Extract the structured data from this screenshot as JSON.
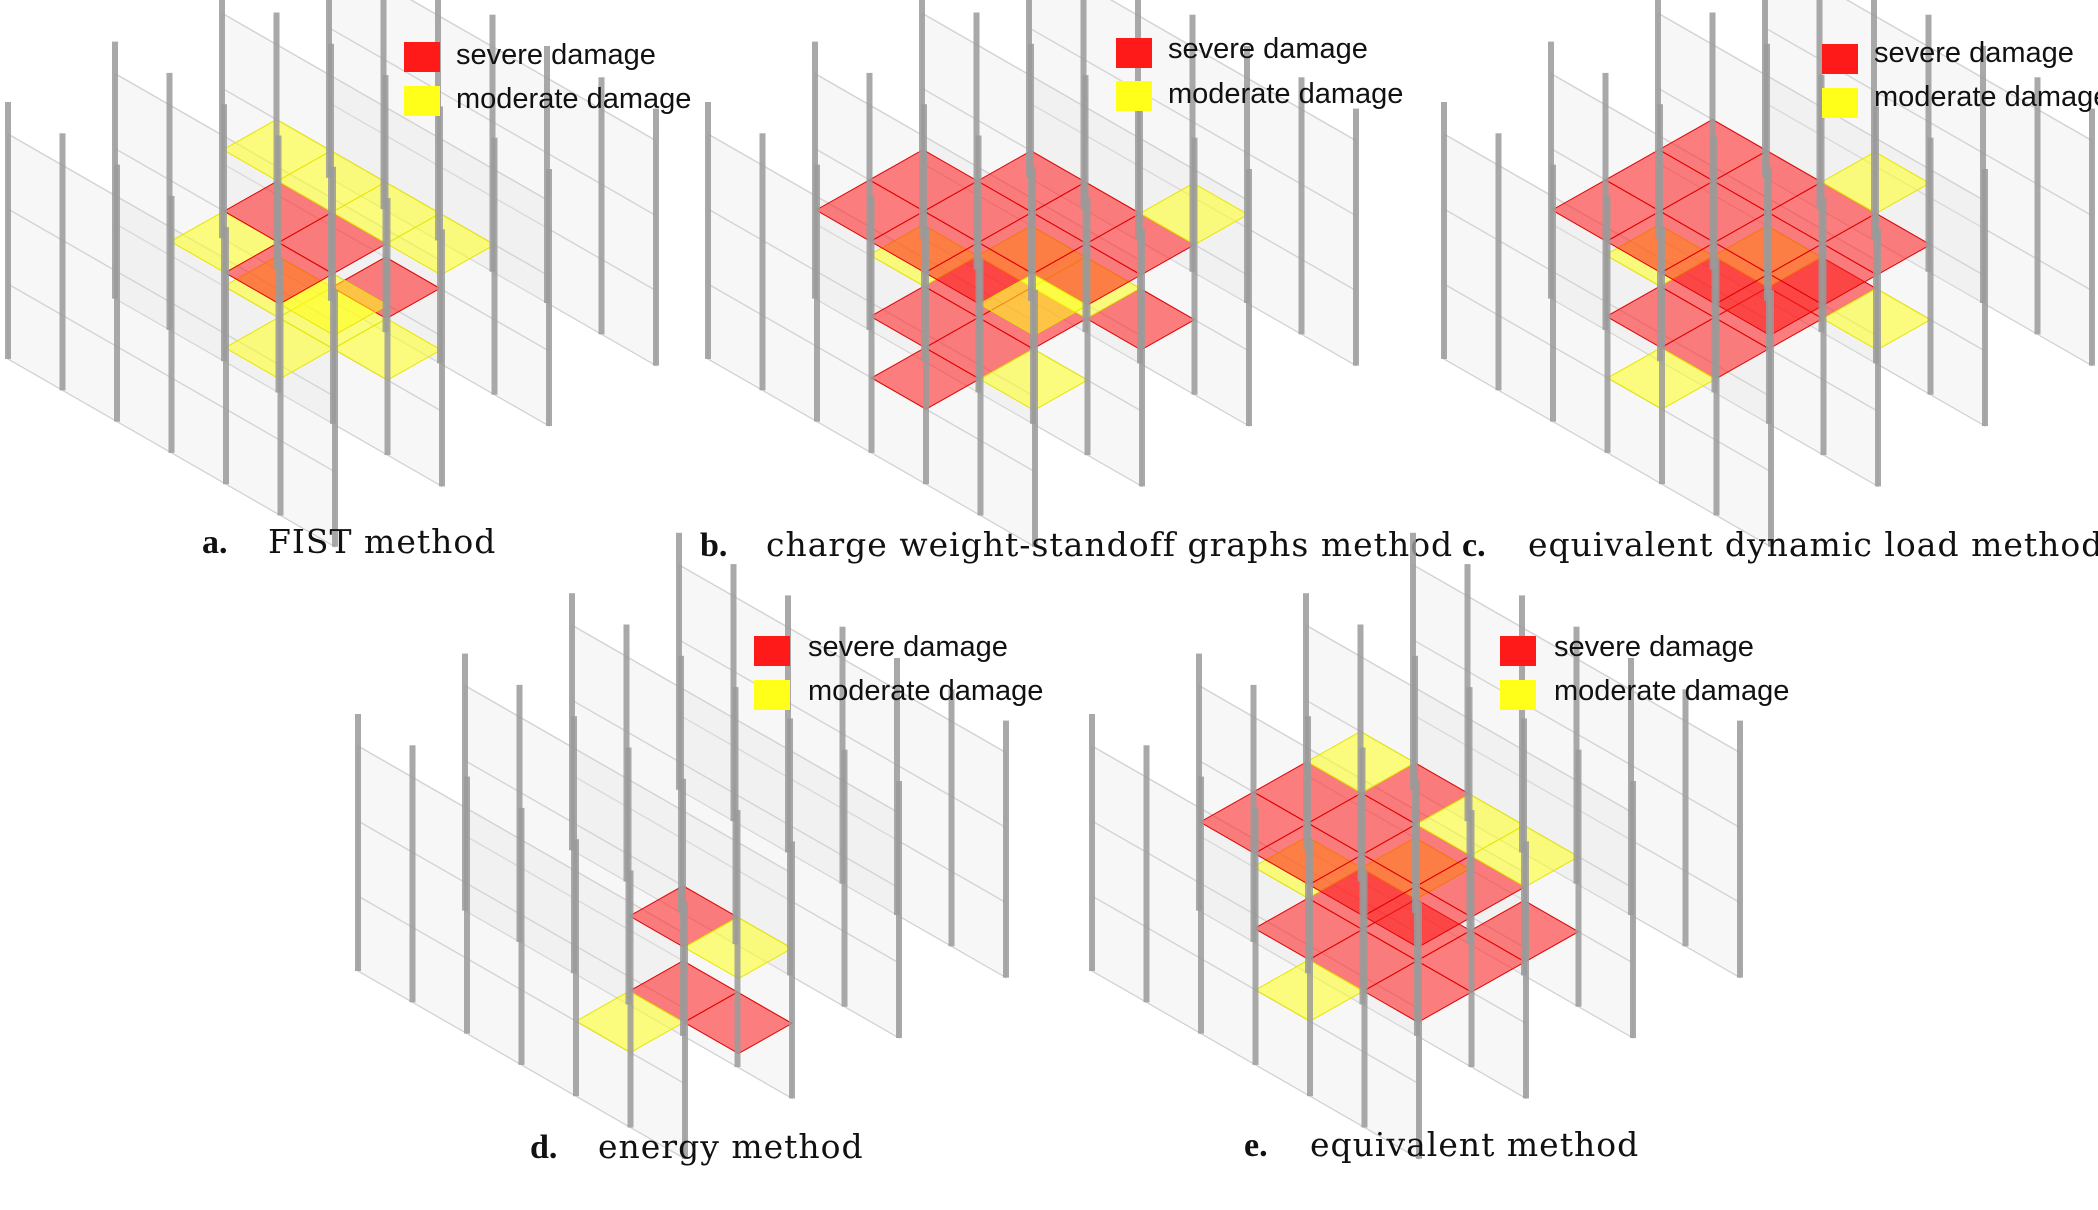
{
  "colors": {
    "severe": "#ff1a1a",
    "moderate": "#ffff1a",
    "frame": "#9a9a9a",
    "wall": "#e6e6e6"
  },
  "legend": {
    "severe": "severe damage",
    "moderate": "moderate damage"
  },
  "panels": [
    {
      "id": "a",
      "letter": "a.",
      "caption": "FIST method",
      "damage": {
        "0": [
          [
            "M",
            2,
            2
          ],
          [
            "M",
            3,
            2
          ],
          [
            "S",
            3,
            3
          ],
          [
            "M",
            4,
            2
          ],
          [
            "M",
            3,
            1
          ]
        ],
        "1": [
          [
            "M",
            2,
            1
          ],
          [
            "S",
            3,
            2
          ],
          [
            "M",
            3,
            3
          ],
          [
            "S",
            2,
            2
          ],
          [
            "M",
            4,
            1
          ],
          [
            "M",
            4,
            3
          ],
          [
            "S",
            3,
            1
          ],
          [
            "M",
            2,
            3
          ],
          [
            "M",
            1,
            3
          ]
        ]
      }
    },
    {
      "id": "b",
      "letter": "b.",
      "caption": "charge weight-standoff graphs method",
      "damage": {
        "0": [
          [
            "S",
            2,
            1
          ],
          [
            "S",
            3,
            1
          ],
          [
            "S",
            2,
            2
          ],
          [
            "S",
            3,
            2
          ],
          [
            "S",
            4,
            3
          ],
          [
            "M",
            1,
            2
          ],
          [
            "M",
            2,
            3
          ],
          [
            "M",
            4,
            1
          ],
          [
            "M",
            3,
            3
          ],
          [
            "S",
            3,
            0
          ]
        ],
        "1": [
          [
            "S",
            1,
            1
          ],
          [
            "S",
            2,
            1
          ],
          [
            "S",
            3,
            1
          ],
          [
            "S",
            1,
            2
          ],
          [
            "S",
            2,
            2
          ],
          [
            "S",
            3,
            2
          ],
          [
            "S",
            4,
            2
          ],
          [
            "S",
            2,
            3
          ],
          [
            "S",
            3,
            3
          ],
          [
            "M",
            4,
            1
          ],
          [
            "S",
            4,
            3
          ],
          [
            "M",
            4,
            4
          ]
        ]
      }
    },
    {
      "id": "c",
      "letter": "c.",
      "caption": "equivalent dynamic load method",
      "damage": {
        "0": [
          [
            "S",
            2,
            1
          ],
          [
            "S",
            3,
            1
          ],
          [
            "S",
            2,
            2
          ],
          [
            "S",
            3,
            2
          ],
          [
            "S",
            3,
            3
          ],
          [
            "M",
            2,
            3
          ],
          [
            "M",
            1,
            2
          ],
          [
            "M",
            4,
            3
          ],
          [
            "M",
            3,
            0
          ]
        ],
        "1": [
          [
            "S",
            1,
            1
          ],
          [
            "S",
            2,
            1
          ],
          [
            "S",
            3,
            1
          ],
          [
            "S",
            4,
            1
          ],
          [
            "S",
            1,
            2
          ],
          [
            "S",
            2,
            2
          ],
          [
            "S",
            3,
            2
          ],
          [
            "S",
            4,
            2
          ],
          [
            "S",
            1,
            3
          ],
          [
            "S",
            2,
            3
          ],
          [
            "S",
            3,
            3
          ],
          [
            "S",
            4,
            3
          ],
          [
            "M",
            3,
            4
          ]
        ]
      }
    },
    {
      "id": "d",
      "letter": "d.",
      "caption": "energy method",
      "damage": {
        "0": [
          [
            "S",
            4,
            1
          ],
          [
            "M",
            4,
            0
          ],
          [
            "S",
            5,
            1
          ]
        ],
        "1": [
          [
            "S",
            4,
            1
          ],
          [
            "M",
            5,
            1
          ]
        ]
      }
    },
    {
      "id": "e",
      "letter": "e.",
      "caption": "equivalent method",
      "damage": {
        "0": [
          [
            "S",
            2,
            1
          ],
          [
            "S",
            3,
            1
          ],
          [
            "S",
            4,
            1
          ],
          [
            "S",
            2,
            2
          ],
          [
            "S",
            3,
            2
          ],
          [
            "S",
            4,
            3
          ],
          [
            "M",
            2,
            3
          ],
          [
            "M",
            1,
            2
          ],
          [
            "M",
            3,
            0
          ],
          [
            "S",
            4,
            2
          ]
        ],
        "1": [
          [
            "S",
            1,
            1
          ],
          [
            "S",
            2,
            1
          ],
          [
            "S",
            3,
            1
          ],
          [
            "S",
            4,
            1
          ],
          [
            "S",
            1,
            2
          ],
          [
            "S",
            2,
            2
          ],
          [
            "S",
            3,
            2
          ],
          [
            "S",
            4,
            2
          ],
          [
            "S",
            2,
            3
          ],
          [
            "M",
            3,
            3
          ],
          [
            "M",
            1,
            3
          ],
          [
            "M",
            4,
            3
          ]
        ]
      }
    }
  ]
}
